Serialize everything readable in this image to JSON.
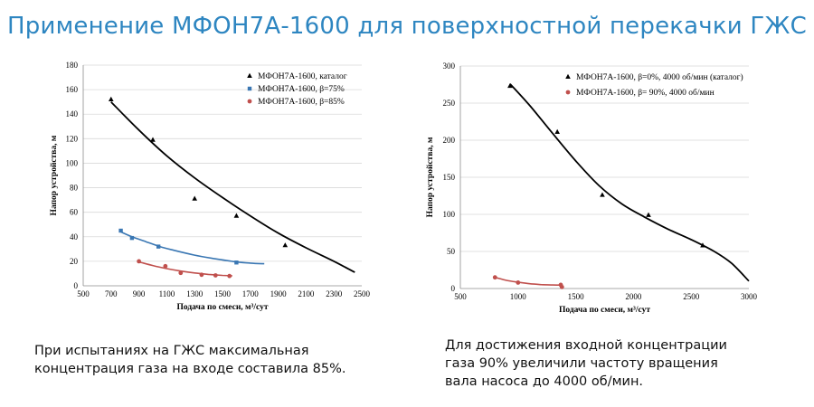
{
  "title": "Применение МФОН7А-1600 для поверхностной перекачки ГЖС",
  "notes": {
    "left": "При испытаниях на ГЖС максимальная концентрация газа на входе составила 85%.",
    "right": "Для достижения входной концентрации газа 90% увеличили частоту вращения вала насоса до 4000 об/мин."
  },
  "chart_data": [
    {
      "type": "scatter",
      "xlabel": "Подача по смеси, м³/сут",
      "ylabel": "Напор устройства, м",
      "xlim": [
        500,
        2500
      ],
      "ylim": [
        0,
        180
      ],
      "xticks": [
        500,
        700,
        900,
        1100,
        1300,
        1500,
        1700,
        1900,
        2100,
        2300,
        2500
      ],
      "yticks": [
        0,
        20,
        40,
        60,
        80,
        100,
        120,
        140,
        160,
        180
      ],
      "grid": "horizontal",
      "legend_position": "top-right",
      "series": [
        {
          "name": "МФОН7А-1600, каталог",
          "color": "#000000",
          "marker": "triangle",
          "points": [
            [
              700,
              152
            ],
            [
              1000,
              119
            ],
            [
              1300,
              71
            ],
            [
              1600,
              57
            ],
            [
              1950,
              33
            ]
          ],
          "trend": [
            [
              700,
              150
            ],
            [
              900,
              127
            ],
            [
              1100,
              106
            ],
            [
              1300,
              88
            ],
            [
              1500,
              72
            ],
            [
              1700,
              57
            ],
            [
              1900,
              43
            ],
            [
              2100,
              31
            ],
            [
              2300,
              20
            ],
            [
              2450,
              11
            ]
          ]
        },
        {
          "name": "МФОН7А-1600,  β=75%",
          "color": "#3a77b3",
          "marker": "square",
          "points": [
            [
              770,
              45
            ],
            [
              850,
              39
            ],
            [
              1040,
              32
            ],
            [
              1600,
              19
            ]
          ],
          "trend": [
            [
              770,
              44
            ],
            [
              850,
              40
            ],
            [
              950,
              36
            ],
            [
              1050,
              32
            ],
            [
              1150,
              29
            ],
            [
              1300,
              25
            ],
            [
              1450,
              22
            ],
            [
              1600,
              19.5
            ],
            [
              1700,
              18.5
            ],
            [
              1800,
              18
            ]
          ]
        },
        {
          "name": "МФОН7А-1600,  β=85%",
          "color": "#c0504d",
          "marker": "circle",
          "points": [
            [
              900,
              20
            ],
            [
              1090,
              16
            ],
            [
              1200,
              10.5
            ],
            [
              1350,
              9
            ],
            [
              1450,
              8.5
            ],
            [
              1550,
              8
            ]
          ],
          "trend": [
            [
              900,
              19.5
            ],
            [
              1000,
              16.5
            ],
            [
              1100,
              14
            ],
            [
              1200,
              12
            ],
            [
              1300,
              10.5
            ],
            [
              1400,
              9.3
            ],
            [
              1500,
              8.5
            ],
            [
              1570,
              8.2
            ]
          ]
        }
      ]
    },
    {
      "type": "scatter",
      "xlabel": "Подача по смеси, м³/сут",
      "ylabel": "Напор устройства, м",
      "xlim": [
        500,
        3000
      ],
      "ylim": [
        0,
        300
      ],
      "xticks": [
        500,
        1000,
        1500,
        2000,
        2500,
        3000
      ],
      "yticks": [
        0,
        50,
        100,
        150,
        200,
        250,
        300
      ],
      "grid": "horizontal",
      "legend_position": "top-right",
      "series": [
        {
          "name": "МФОН7А-1600,  β=0%, 4000 об/мин (каталог)",
          "color": "#000000",
          "marker": "triangle",
          "points": [
            [
              930,
              273
            ],
            [
              1340,
              211
            ],
            [
              1730,
              126
            ],
            [
              2130,
              99
            ],
            [
              2600,
              58
            ]
          ],
          "trend": [
            [
              930,
              276
            ],
            [
              1100,
              247
            ],
            [
              1300,
              209
            ],
            [
              1500,
              172
            ],
            [
              1700,
              139
            ],
            [
              1900,
              114
            ],
            [
              2100,
              96
            ],
            [
              2300,
              80
            ],
            [
              2500,
              66
            ],
            [
              2700,
              50
            ],
            [
              2850,
              34
            ],
            [
              3000,
              10
            ]
          ]
        },
        {
          "name": "МФОН7А-1600,  β= 90%, 4000 об/мин",
          "color": "#c0504d",
          "marker": "circle",
          "points": [
            [
              800,
              15
            ],
            [
              1000,
              8
            ],
            [
              1370,
              5
            ],
            [
              1380,
              2
            ]
          ],
          "trend": [
            [
              800,
              15
            ],
            [
              900,
              11
            ],
            [
              1000,
              8.5
            ],
            [
              1100,
              6.5
            ],
            [
              1200,
              5.3
            ],
            [
              1300,
              4.8
            ],
            [
              1380,
              4.6
            ]
          ]
        }
      ]
    }
  ]
}
